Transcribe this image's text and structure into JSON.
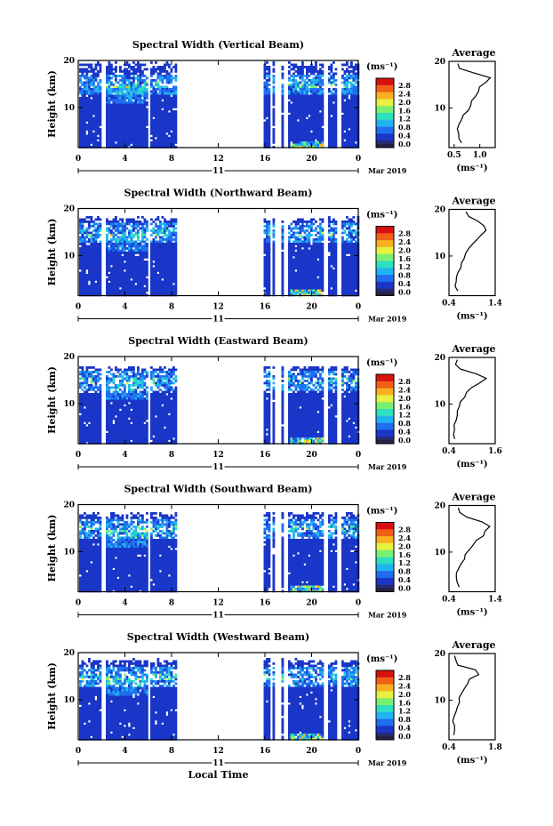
{
  "chart_data": {
    "type": "heatmap",
    "x_axis_label": "Local Time",
    "x_ticks": [
      "0",
      "4",
      "8",
      "12",
      "16",
      "20",
      "0"
    ],
    "x_range_hours": [
      0,
      24
    ],
    "date_day": "11",
    "date_month_year": "Mar 2019",
    "y_label": "Height (km)",
    "y_ticks": [
      "20",
      "10"
    ],
    "y_range_km": [
      1.5,
      20
    ],
    "colorbar": {
      "unit": "(ms⁻¹)",
      "labels": [
        "2.8",
        "2.4",
        "2.0",
        "1.6",
        "1.2",
        "0.8",
        "0.4",
        "0.0"
      ],
      "range": [
        0.0,
        3.0
      ],
      "colors": [
        "#2a2a70",
        "#1a36c8",
        "#1f6ff0",
        "#22b4f0",
        "#2ee0c0",
        "#7af070",
        "#e8f040",
        "#f8b020",
        "#f06018",
        "#d81010"
      ]
    },
    "average_title": "Average",
    "average_unit": "(ms⁻¹)",
    "data_gaps_hours": [
      [
        1.8,
        2.2
      ],
      [
        5.8,
        6.1
      ],
      [
        8.3,
        15.8
      ],
      [
        16.3,
        16.5
      ],
      [
        16.8,
        17.3
      ],
      [
        17.5,
        17.9
      ],
      [
        21.0,
        21.3
      ],
      [
        22.0,
        22.4
      ]
    ],
    "panels": [
      {
        "title": "Spectral Width (Vertical Beam)",
        "top_km": 19.2,
        "average": {
          "x_ticks": [
            "0.5",
            "1.0"
          ],
          "x_tick_values": [
            0.5,
            1.0
          ],
          "x_range": [
            0.4,
            1.3
          ],
          "heights": [
            2.5,
            3.5,
            4.5,
            5.5,
            6.5,
            7.5,
            8.5,
            9.5,
            10.5,
            11.5,
            12.5,
            13.5,
            14.5,
            15.5,
            16.5,
            17.5,
            18.5,
            19.5
          ],
          "values": [
            0.62,
            0.58,
            0.6,
            0.56,
            0.62,
            0.64,
            0.68,
            0.78,
            0.8,
            0.86,
            0.92,
            0.96,
            1.02,
            1.12,
            1.22,
            0.9,
            0.58,
            0.56
          ]
        }
      },
      {
        "title": "Spectral Width (Northward Beam)",
        "top_km": 17.8,
        "average": {
          "x_ticks": [
            "0.4",
            "1.4"
          ],
          "x_tick_values": [
            0.4,
            1.4
          ],
          "x_range": [
            0.4,
            1.4
          ],
          "heights": [
            2.5,
            3.5,
            4.5,
            5.5,
            6.5,
            7.5,
            8.5,
            9.5,
            10.5,
            11.5,
            12.5,
            13.5,
            14.5,
            15.5,
            16.5,
            17.5,
            18.5,
            19.5
          ],
          "values": [
            0.6,
            0.55,
            0.58,
            0.57,
            0.6,
            0.63,
            0.68,
            0.72,
            0.76,
            0.84,
            0.92,
            1.02,
            1.1,
            1.22,
            1.16,
            1.0,
            0.82,
            0.78
          ]
        }
      },
      {
        "title": "Spectral Width (Eastward Beam)",
        "top_km": 17.6,
        "average": {
          "x_ticks": [
            "0.4",
            "1.6"
          ],
          "x_tick_values": [
            0.4,
            1.6
          ],
          "x_range": [
            0.4,
            1.6
          ],
          "heights": [
            2.5,
            3.5,
            4.5,
            5.5,
            6.5,
            7.5,
            8.5,
            9.5,
            10.5,
            11.5,
            12.5,
            13.5,
            14.5,
            15.5,
            16.5,
            17.5,
            18.5,
            19.5
          ],
          "values": [
            0.56,
            0.52,
            0.54,
            0.52,
            0.56,
            0.6,
            0.62,
            0.66,
            0.7,
            0.78,
            0.86,
            0.98,
            1.2,
            1.4,
            1.1,
            0.7,
            0.56,
            0.62
          ]
        }
      },
      {
        "title": "Spectral Width (Southward Beam)",
        "top_km": 18.0,
        "average": {
          "x_ticks": [
            "0.4",
            "1.4"
          ],
          "x_tick_values": [
            0.4,
            1.4
          ],
          "x_range": [
            0.4,
            1.4
          ],
          "heights": [
            2.5,
            3.5,
            4.5,
            5.5,
            6.5,
            7.5,
            8.5,
            9.5,
            10.5,
            11.5,
            12.5,
            13.5,
            14.5,
            15.5,
            16.5,
            17.5,
            18.5,
            19.5
          ],
          "values": [
            0.62,
            0.56,
            0.58,
            0.56,
            0.62,
            0.66,
            0.72,
            0.76,
            0.82,
            0.9,
            1.0,
            1.12,
            1.2,
            1.3,
            1.12,
            0.8,
            0.62,
            0.58
          ]
        }
      },
      {
        "title": "Spectral Width (Westward Beam)",
        "top_km": 18.2,
        "average": {
          "x_ticks": [
            "0.4",
            "1.8"
          ],
          "x_tick_values": [
            0.4,
            1.8
          ],
          "x_range": [
            0.4,
            1.8
          ],
          "heights": [
            2.5,
            3.5,
            4.5,
            5.5,
            6.5,
            7.5,
            8.5,
            9.5,
            10.5,
            11.5,
            12.5,
            13.5,
            14.5,
            15.5,
            16.5,
            17.5,
            18.5,
            19.5
          ],
          "values": [
            0.58,
            0.54,
            0.56,
            0.55,
            0.58,
            0.62,
            0.66,
            0.72,
            0.74,
            0.82,
            0.9,
            0.98,
            1.06,
            1.3,
            1.2,
            0.7,
            0.58,
            0.56
          ]
        }
      }
    ]
  }
}
